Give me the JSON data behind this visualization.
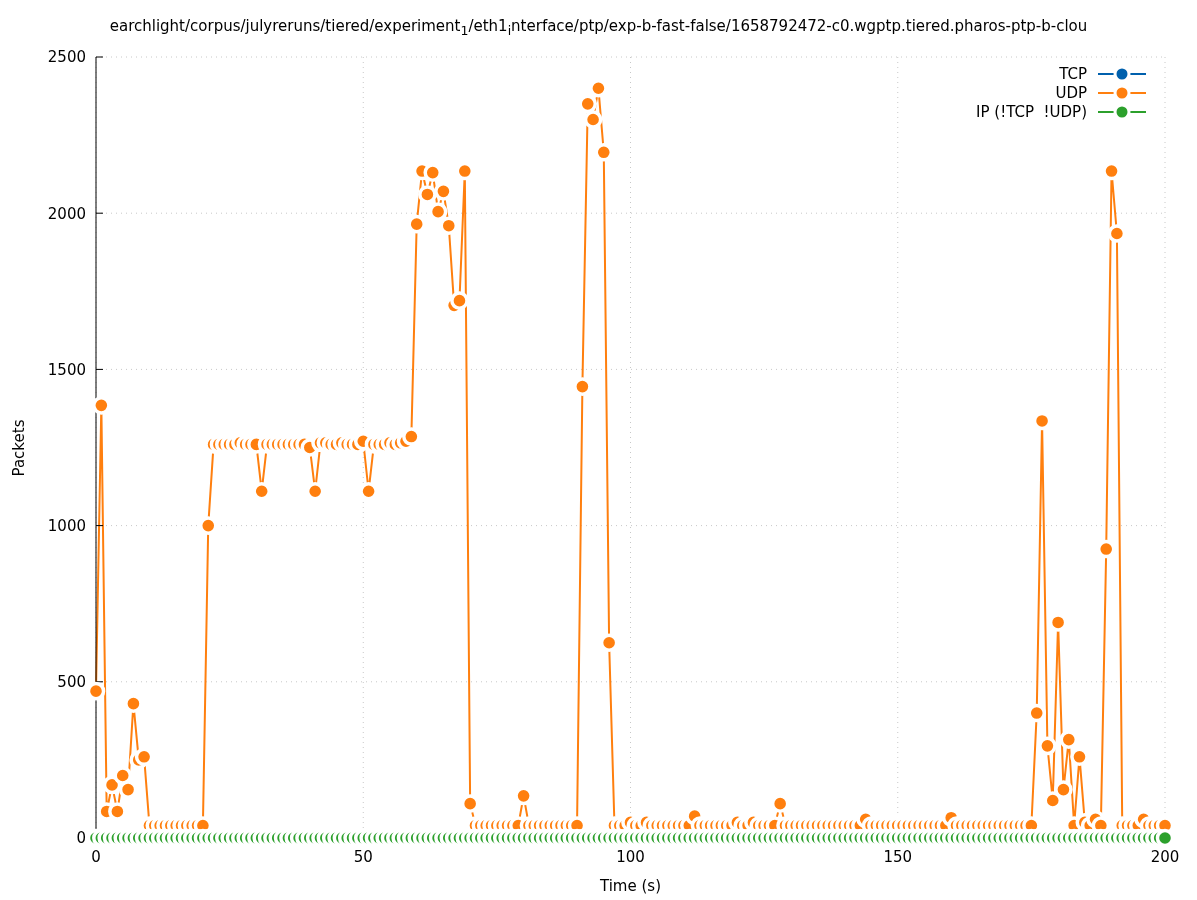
{
  "chart_data": {
    "type": "line",
    "title": "earchlight/corpus/julyreruns/tiered/experiment$_{1}$/eth1$_{i}$nterface/ptp/exp-b-fast-false/1658792472-c0.wgptp.tiered.pharos-ptp-b-clou",
    "xlabel": "Time (s)",
    "ylabel": "Packets",
    "x": [
      0,
      1,
      2,
      3,
      4,
      5,
      6,
      7,
      8,
      9,
      10,
      11,
      12,
      13,
      14,
      15,
      16,
      17,
      18,
      19,
      20,
      21,
      22,
      23,
      24,
      25,
      26,
      27,
      28,
      29,
      30,
      31,
      32,
      33,
      34,
      35,
      36,
      37,
      38,
      39,
      40,
      41,
      42,
      43,
      44,
      45,
      46,
      47,
      48,
      49,
      50,
      51,
      52,
      53,
      54,
      55,
      56,
      57,
      58,
      59,
      60,
      61,
      62,
      63,
      64,
      65,
      66,
      67,
      68,
      69,
      70,
      71,
      72,
      73,
      74,
      75,
      76,
      77,
      78,
      79,
      80,
      81,
      82,
      83,
      84,
      85,
      86,
      87,
      88,
      89,
      90,
      91,
      92,
      93,
      94,
      95,
      96,
      97,
      98,
      99,
      100,
      101,
      102,
      103,
      104,
      105,
      106,
      107,
      108,
      109,
      110,
      111,
      112,
      113,
      114,
      115,
      116,
      117,
      118,
      119,
      120,
      121,
      122,
      123,
      124,
      125,
      126,
      127,
      128,
      129,
      130,
      131,
      132,
      133,
      134,
      135,
      136,
      137,
      138,
      139,
      140,
      141,
      142,
      143,
      144,
      145,
      146,
      147,
      148,
      149,
      150,
      151,
      152,
      153,
      154,
      155,
      156,
      157,
      158,
      159,
      160,
      161,
      162,
      163,
      164,
      165,
      166,
      167,
      168,
      169,
      170,
      171,
      172,
      173,
      174,
      175,
      176,
      177,
      178,
      179,
      180,
      181,
      182,
      183,
      184,
      185,
      186,
      187,
      188,
      189,
      190,
      191,
      192,
      193,
      194,
      195,
      196,
      197,
      198,
      199,
      200
    ],
    "series": [
      {
        "name": "TCP",
        "color": "#0060ad",
        "values": [
          null,
          null,
          null,
          null,
          null,
          null,
          null,
          null,
          null,
          null,
          null,
          null,
          null,
          null,
          null,
          null,
          null,
          null,
          null,
          null,
          null,
          null,
          null,
          null,
          null,
          null,
          null,
          null,
          null,
          null,
          null,
          null,
          null,
          null,
          null,
          null,
          null,
          null,
          null,
          null,
          null,
          null,
          null,
          null,
          null,
          null,
          null,
          null,
          null,
          null,
          null,
          null,
          null,
          null,
          null,
          null,
          null,
          null,
          null,
          null,
          null,
          null,
          null,
          null,
          null,
          null,
          null,
          null,
          null,
          null,
          null,
          null,
          null,
          null,
          null,
          null,
          null,
          null,
          null,
          null,
          null,
          null,
          null,
          null,
          null,
          null,
          null,
          null,
          null,
          null,
          null,
          null,
          null,
          null,
          null,
          null,
          null,
          null,
          null,
          null,
          null,
          null,
          null,
          null,
          null,
          null,
          null,
          null,
          null,
          null,
          null,
          null,
          null,
          null,
          null,
          null,
          null,
          null,
          null,
          null,
          null,
          null,
          null,
          null,
          null,
          null,
          null,
          null,
          null,
          null,
          null,
          null,
          null,
          null,
          null,
          null,
          null,
          null,
          null,
          null,
          null,
          null,
          null,
          null,
          null,
          null,
          null,
          null,
          null,
          null,
          null,
          null,
          null,
          null,
          null,
          null,
          null,
          null,
          null,
          null,
          null,
          null,
          null,
          null,
          null,
          null,
          null,
          null,
          null,
          null,
          null,
          null,
          null,
          null,
          null,
          null,
          null,
          null,
          null,
          null,
          null,
          null,
          null,
          null,
          null,
          null,
          null,
          null,
          null,
          null,
          null,
          null,
          null,
          null,
          null,
          null,
          null,
          null,
          null,
          null,
          null
        ]
      },
      {
        "name": "UDP",
        "color": "#ff7f0e",
        "values": [
          470,
          1385,
          85,
          170,
          85,
          200,
          155,
          430,
          250,
          260,
          40,
          40,
          40,
          40,
          40,
          40,
          40,
          40,
          40,
          40,
          40,
          1000,
          1260,
          1260,
          1260,
          1260,
          1260,
          1265,
          1260,
          1260,
          1260,
          1110,
          1260,
          1260,
          1260,
          1260,
          1260,
          1260,
          1260,
          1260,
          1250,
          1110,
          1265,
          1265,
          1260,
          1260,
          1265,
          1260,
          1260,
          1260,
          1270,
          1110,
          1260,
          1260,
          1260,
          1265,
          1260,
          1265,
          1270,
          1285,
          1965,
          2135,
          2060,
          2130,
          2005,
          2070,
          1960,
          1705,
          1720,
          2135,
          110,
          40,
          40,
          40,
          40,
          40,
          40,
          40,
          40,
          40,
          135,
          40,
          40,
          40,
          40,
          40,
          40,
          40,
          40,
          40,
          40,
          1445,
          2350,
          2300,
          2400,
          2195,
          625,
          40,
          40,
          40,
          50,
          40,
          40,
          50,
          40,
          40,
          40,
          40,
          40,
          40,
          40,
          40,
          70,
          40,
          40,
          40,
          40,
          40,
          40,
          40,
          50,
          40,
          40,
          50,
          40,
          40,
          40,
          40,
          110,
          40,
          40,
          40,
          40,
          40,
          40,
          40,
          40,
          40,
          40,
          40,
          40,
          40,
          40,
          40,
          60,
          40,
          40,
          40,
          40,
          40,
          40,
          40,
          40,
          40,
          40,
          40,
          40,
          40,
          40,
          40,
          65,
          40,
          40,
          40,
          40,
          40,
          40,
          40,
          40,
          40,
          40,
          40,
          40,
          40,
          40,
          40,
          400,
          1335,
          295,
          120,
          690,
          155,
          315,
          40,
          260,
          50,
          40,
          60,
          40,
          925,
          2135,
          1935,
          40,
          40,
          40,
          40,
          60,
          40,
          40,
          40,
          40
        ]
      },
      {
        "name": "IP (!TCP  !UDP)",
        "color": "#2ca02c",
        "values": [
          0,
          0,
          0,
          0,
          0,
          0,
          0,
          0,
          0,
          0,
          0,
          0,
          0,
          0,
          0,
          0,
          0,
          0,
          0,
          0,
          0,
          0,
          0,
          0,
          0,
          0,
          0,
          0,
          0,
          0,
          0,
          0,
          0,
          0,
          0,
          0,
          0,
          0,
          0,
          0,
          0,
          0,
          0,
          0,
          0,
          0,
          0,
          0,
          0,
          0,
          0,
          0,
          0,
          0,
          0,
          0,
          0,
          0,
          0,
          0,
          0,
          0,
          0,
          0,
          0,
          0,
          0,
          0,
          0,
          0,
          0,
          0,
          0,
          0,
          0,
          0,
          0,
          0,
          0,
          0,
          0,
          0,
          0,
          0,
          0,
          0,
          0,
          0,
          0,
          0,
          0,
          0,
          0,
          0,
          0,
          0,
          0,
          0,
          0,
          0,
          0,
          0,
          0,
          0,
          0,
          0,
          0,
          0,
          0,
          0,
          0,
          0,
          0,
          0,
          0,
          0,
          0,
          0,
          0,
          0,
          0,
          0,
          0,
          0,
          0,
          0,
          0,
          0,
          0,
          0,
          0,
          0,
          0,
          0,
          0,
          0,
          0,
          0,
          0,
          0,
          0,
          0,
          0,
          0,
          0,
          0,
          0,
          0,
          0,
          0,
          0,
          0,
          0,
          0,
          0,
          0,
          0,
          0,
          0,
          0,
          0,
          0,
          0,
          0,
          0,
          0,
          0,
          0,
          0,
          0,
          0,
          0,
          0,
          0,
          0,
          0,
          0,
          0,
          0,
          0,
          0,
          0,
          0,
          0,
          0,
          0,
          0,
          0,
          0,
          0,
          0,
          0,
          0,
          0,
          0,
          0,
          0,
          0,
          0,
          0,
          0
        ]
      }
    ],
    "xlim": [
      0,
      200
    ],
    "xticks": [
      0,
      50,
      100,
      150,
      200
    ],
    "ylim": [
      0,
      2500
    ],
    "yticks": [
      0,
      500,
      1000,
      1500,
      2000,
      2500
    ],
    "grid": true,
    "legend": "top right",
    "marker": "circle",
    "line_style": "solid"
  }
}
